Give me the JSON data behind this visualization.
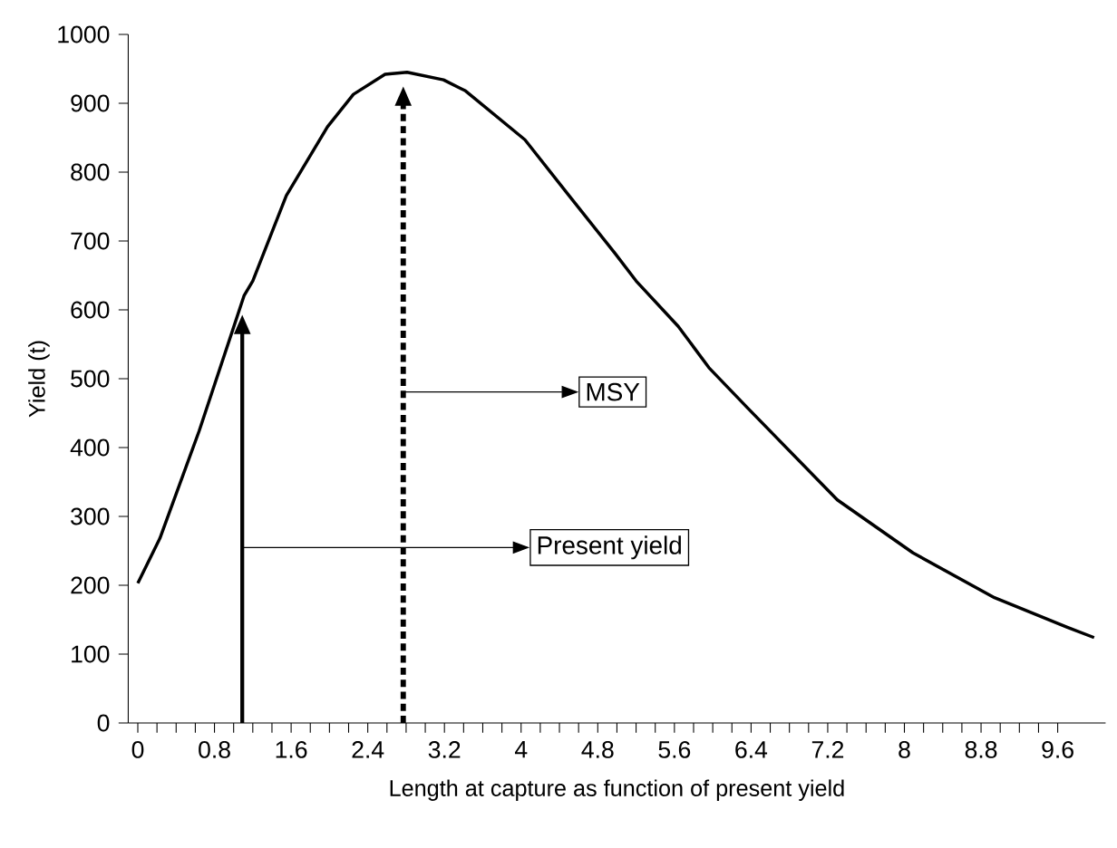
{
  "chart_data": {
    "type": "line",
    "xlabel": "Length at capture as function of present yield",
    "ylabel": "Yield (t)",
    "x": [
      0,
      0.23,
      0.64,
      1.11,
      1.2,
      1.55,
      1.98,
      2.25,
      2.58,
      2.81,
      3.19,
      3.42,
      4.04,
      4.5,
      4.98,
      5.2,
      5.64,
      5.96,
      6.36,
      7.3,
      8.09,
      8.94,
      9.7,
      9.98
    ],
    "series": [
      {
        "color": "#000000",
        "values": [
          203,
          268,
          424,
          621,
          642,
          766,
          866,
          913,
          942,
          945,
          934,
          918,
          847,
          766,
          682,
          642,
          576,
          516,
          458,
          324,
          247,
          182,
          139,
          124
        ]
      }
    ],
    "xlim": [
      -0.1,
      10.1
    ],
    "ylim": [
      0,
      1000
    ],
    "xticks": [
      0,
      0.8,
      1.6,
      2.4,
      3.2,
      4,
      4.8,
      5.6,
      6.4,
      7.2,
      8,
      8.8,
      9.6
    ],
    "yticks": [
      0,
      100,
      200,
      300,
      400,
      500,
      600,
      700,
      800,
      900,
      1000
    ],
    "ref_lines": [
      {
        "axis": "x",
        "value": 1.09,
        "label": "Present yield",
        "line_style": "solid"
      },
      {
        "axis": "x",
        "value": 2.77,
        "label": "MSY",
        "line_style": "dashed"
      }
    ]
  }
}
